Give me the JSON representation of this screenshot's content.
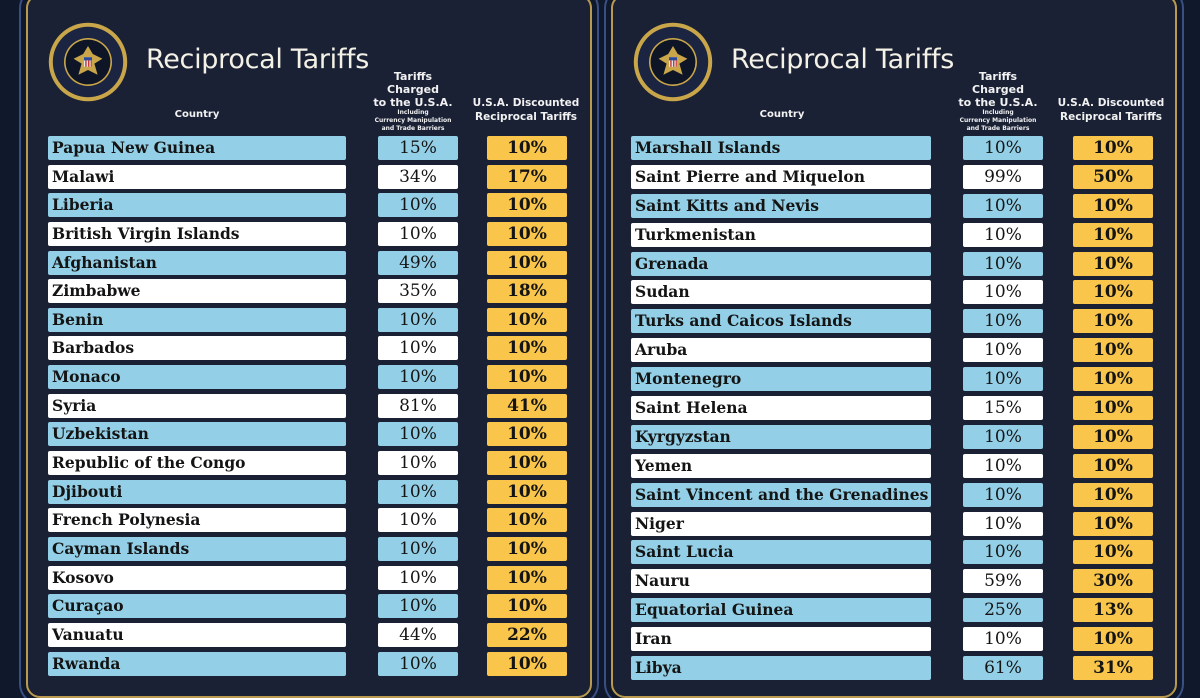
{
  "seal": {
    "text": "SEAL OF THE PRESIDENT OF THE UNITED STATES",
    "colors": {
      "ring": "#c9a64a",
      "field": "#1b2440",
      "inner": "#0e1526"
    }
  },
  "colors": {
    "background": "#10182b",
    "panel": "#1a2135",
    "border_gold": "#b99a4e",
    "row_blue": "#93cfe6",
    "row_white": "#ffffff",
    "reciprocal_yellow": "#f9c64b"
  },
  "panels": [
    {
      "title": "Reciprocal Tariffs",
      "headers": {
        "country": "Country",
        "charged_line1": "Tariffs Charged",
        "charged_line2": "to the U.S.A.",
        "charged_sub1": "Including",
        "charged_sub2": "Currency Manipulation",
        "charged_sub3": "and Trade Barriers",
        "reciprocal_line1": "U.S.A. Discounted",
        "reciprocal_line2": "Reciprocal Tariffs"
      },
      "rows": [
        {
          "country": "Papua New Guinea",
          "charged": "15%",
          "reciprocal": "10%"
        },
        {
          "country": "Malawi",
          "charged": "34%",
          "reciprocal": "17%"
        },
        {
          "country": "Liberia",
          "charged": "10%",
          "reciprocal": "10%"
        },
        {
          "country": "British Virgin Islands",
          "charged": "10%",
          "reciprocal": "10%"
        },
        {
          "country": "Afghanistan",
          "charged": "49%",
          "reciprocal": "10%"
        },
        {
          "country": "Zimbabwe",
          "charged": "35%",
          "reciprocal": "18%"
        },
        {
          "country": "Benin",
          "charged": "10%",
          "reciprocal": "10%"
        },
        {
          "country": "Barbados",
          "charged": "10%",
          "reciprocal": "10%"
        },
        {
          "country": "Monaco",
          "charged": "10%",
          "reciprocal": "10%"
        },
        {
          "country": "Syria",
          "charged": "81%",
          "reciprocal": "41%"
        },
        {
          "country": "Uzbekistan",
          "charged": "10%",
          "reciprocal": "10%"
        },
        {
          "country": "Republic of the Congo",
          "charged": "10%",
          "reciprocal": "10%"
        },
        {
          "country": "Djibouti",
          "charged": "10%",
          "reciprocal": "10%"
        },
        {
          "country": "French Polynesia",
          "charged": "10%",
          "reciprocal": "10%"
        },
        {
          "country": "Cayman Islands",
          "charged": "10%",
          "reciprocal": "10%"
        },
        {
          "country": "Kosovo",
          "charged": "10%",
          "reciprocal": "10%"
        },
        {
          "country": "Curaçao",
          "charged": "10%",
          "reciprocal": "10%"
        },
        {
          "country": "Vanuatu",
          "charged": "44%",
          "reciprocal": "22%"
        },
        {
          "country": "Rwanda",
          "charged": "10%",
          "reciprocal": "10%"
        }
      ]
    },
    {
      "title": "Reciprocal Tariffs",
      "headers": {
        "country": "Country",
        "charged_line1": "Tariffs Charged",
        "charged_line2": "to the U.S.A.",
        "charged_sub1": "Including",
        "charged_sub2": "Currency Manipulation",
        "charged_sub3": "and Trade Barriers",
        "reciprocal_line1": "U.S.A. Discounted",
        "reciprocal_line2": "Reciprocal Tariffs"
      },
      "rows": [
        {
          "country": "Marshall Islands",
          "charged": "10%",
          "reciprocal": "10%"
        },
        {
          "country": "Saint Pierre and Miquelon",
          "charged": "99%",
          "reciprocal": "50%"
        },
        {
          "country": "Saint Kitts and Nevis",
          "charged": "10%",
          "reciprocal": "10%"
        },
        {
          "country": "Turkmenistan",
          "charged": "10%",
          "reciprocal": "10%"
        },
        {
          "country": "Grenada",
          "charged": "10%",
          "reciprocal": "10%"
        },
        {
          "country": "Sudan",
          "charged": "10%",
          "reciprocal": "10%"
        },
        {
          "country": "Turks and Caicos Islands",
          "charged": "10%",
          "reciprocal": "10%"
        },
        {
          "country": "Aruba",
          "charged": "10%",
          "reciprocal": "10%"
        },
        {
          "country": "Montenegro",
          "charged": "10%",
          "reciprocal": "10%"
        },
        {
          "country": "Saint Helena",
          "charged": "15%",
          "reciprocal": "10%"
        },
        {
          "country": "Kyrgyzstan",
          "charged": "10%",
          "reciprocal": "10%"
        },
        {
          "country": "Yemen",
          "charged": "10%",
          "reciprocal": "10%"
        },
        {
          "country": "Saint Vincent and the Grenadines",
          "charged": "10%",
          "reciprocal": "10%"
        },
        {
          "country": "Niger",
          "charged": "10%",
          "reciprocal": "10%"
        },
        {
          "country": "Saint Lucia",
          "charged": "10%",
          "reciprocal": "10%"
        },
        {
          "country": "Nauru",
          "charged": "59%",
          "reciprocal": "30%"
        },
        {
          "country": "Equatorial Guinea",
          "charged": "25%",
          "reciprocal": "13%"
        },
        {
          "country": "Iran",
          "charged": "10%",
          "reciprocal": "10%"
        },
        {
          "country": "Libya",
          "charged": "61%",
          "reciprocal": "31%"
        }
      ]
    }
  ]
}
